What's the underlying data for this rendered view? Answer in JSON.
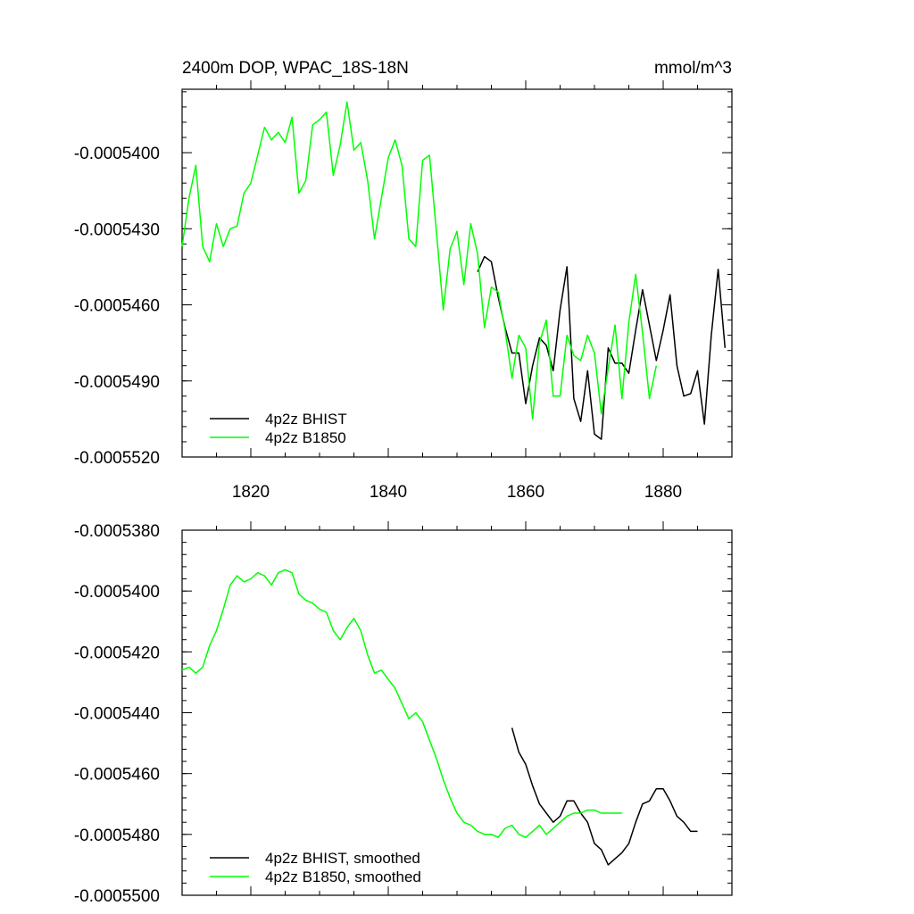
{
  "chart_data": [
    {
      "type": "line",
      "title": "2400m DOP, WPAC_18S-18N",
      "units": "mmol/m^3",
      "xlim": [
        1810,
        1890
      ],
      "ylim": [
        -0.000552,
        -0.0005375
      ],
      "xticks": [
        1820,
        1840,
        1860,
        1880
      ],
      "xtick_labels": [
        "1820",
        "1840",
        "1860",
        "1880"
      ],
      "yticks": [
        -0.000552,
        -0.000549,
        -0.000546,
        -0.000543,
        -0.00054
      ],
      "ytick_labels": [
        "-0.0005520",
        "-0.0005490",
        "-0.0005460",
        "-0.0005430",
        "-0.0005400"
      ],
      "legend": "bottom-left",
      "series": [
        {
          "name": "4p2z BHIST",
          "color": "#000000",
          "x": [
            1853,
            1854,
            1855,
            1856,
            1857,
            1858,
            1859,
            1860,
            1861,
            1862,
            1863,
            1864,
            1865,
            1866,
            1867,
            1868,
            1869,
            1870,
            1871,
            1872,
            1873,
            1874,
            1875,
            1876,
            1877,
            1878,
            1879,
            1880,
            1881,
            1882,
            1883,
            1884,
            1885,
            1886,
            1887,
            1888,
            1889
          ],
          "y": [
            -0.0005447,
            -0.0005441,
            -0.0005443,
            -0.0005457,
            -0.0005469,
            -0.0005479,
            -0.0005479,
            -0.0005499,
            -0.0005484,
            -0.0005473,
            -0.0005476,
            -0.0005486,
            -0.0005462,
            -0.0005445,
            -0.0005497,
            -0.0005506,
            -0.0005486,
            -0.0005511,
            -0.0005513,
            -0.0005477,
            -0.0005483,
            -0.0005483,
            -0.0005487,
            -0.000547,
            -0.0005454,
            -0.0005468,
            -0.0005482,
            -0.000547,
            -0.0005456,
            -0.0005484,
            -0.0005496,
            -0.0005495,
            -0.0005486,
            -0.0005507,
            -0.0005472,
            -0.0005446,
            -0.0005477
          ]
        },
        {
          "name": "4p2z B1850",
          "color": "#00ff00",
          "x": [
            1810,
            1811,
            1812,
            1813,
            1814,
            1815,
            1816,
            1817,
            1818,
            1819,
            1820,
            1821,
            1822,
            1823,
            1824,
            1825,
            1826,
            1827,
            1828,
            1829,
            1830,
            1831,
            1832,
            1833,
            1834,
            1835,
            1836,
            1837,
            1838,
            1839,
            1840,
            1841,
            1842,
            1843,
            1844,
            1845,
            1846,
            1847,
            1848,
            1849,
            1850,
            1851,
            1852,
            1853,
            1854,
            1855,
            1856,
            1857,
            1858,
            1859,
            1860,
            1861,
            1862,
            1863,
            1864,
            1865,
            1866,
            1867,
            1868,
            1869,
            1870,
            1871,
            1872,
            1873,
            1874,
            1875,
            1876,
            1877,
            1878,
            1879
          ],
          "y": [
            -0.0005437,
            -0.0005418,
            -0.0005405,
            -0.0005437,
            -0.0005443,
            -0.0005428,
            -0.0005437,
            -0.000543,
            -0.0005429,
            -0.0005416,
            -0.0005412,
            -0.0005401,
            -0.000539,
            -0.0005395,
            -0.0005392,
            -0.0005396,
            -0.0005386,
            -0.0005416,
            -0.0005411,
            -0.0005389,
            -0.0005387,
            -0.0005384,
            -0.0005409,
            -0.0005397,
            -0.000538,
            -0.0005399,
            -0.0005396,
            -0.0005411,
            -0.0005434,
            -0.0005418,
            -0.0005402,
            -0.0005395,
            -0.0005405,
            -0.0005434,
            -0.0005437,
            -0.0005403,
            -0.0005401,
            -0.0005431,
            -0.0005462,
            -0.0005438,
            -0.0005431,
            -0.0005452,
            -0.0005428,
            -0.000544,
            -0.0005469,
            -0.0005453,
            -0.0005455,
            -0.000547,
            -0.0005489,
            -0.0005472,
            -0.0005477,
            -0.0005505,
            -0.0005475,
            -0.0005466,
            -0.0005496,
            -0.0005496,
            -0.0005472,
            -0.000548,
            -0.0005482,
            -0.0005472,
            -0.0005479,
            -0.0005503,
            -0.0005485,
            -0.0005468,
            -0.0005497,
            -0.0005467,
            -0.0005448,
            -0.0005471,
            -0.0005497,
            -0.0005484
          ]
        }
      ]
    },
    {
      "type": "line",
      "title": "",
      "units": "",
      "xlim": [
        1810,
        1890
      ],
      "ylim": [
        -0.00055,
        -0.000538
      ],
      "xticks": [
        1820,
        1840,
        1860,
        1880
      ],
      "xtick_labels": [],
      "yticks": [
        -0.00055,
        -0.000548,
        -0.000546,
        -0.000544,
        -0.000542,
        -0.00054,
        -0.000538
      ],
      "ytick_labels": [
        "-0.0005500",
        "-0.0005480",
        "-0.0005460",
        "-0.0005440",
        "-0.0005420",
        "-0.0005400",
        "-0.0005380"
      ],
      "legend": "bottom-left",
      "series": [
        {
          "name": "4p2z BHIST, smoothed",
          "color": "#000000",
          "x": [
            1858,
            1859,
            1860,
            1861,
            1862,
            1863,
            1864,
            1865,
            1866,
            1867,
            1868,
            1869,
            1870,
            1871,
            1872,
            1873,
            1874,
            1875,
            1876,
            1877,
            1878,
            1879,
            1880,
            1881,
            1882,
            1883,
            1884,
            1885
          ],
          "y": [
            -0.0005445,
            -0.0005453,
            -0.0005457,
            -0.0005464,
            -0.000547,
            -0.0005473,
            -0.0005476,
            -0.0005474,
            -0.0005469,
            -0.0005469,
            -0.0005473,
            -0.0005476,
            -0.0005483,
            -0.0005485,
            -0.000549,
            -0.0005488,
            -0.0005486,
            -0.0005483,
            -0.0005476,
            -0.000547,
            -0.0005469,
            -0.0005465,
            -0.0005465,
            -0.0005469,
            -0.0005474,
            -0.0005476,
            -0.0005479,
            -0.0005479
          ]
        },
        {
          "name": "4p2z B1850, smoothed",
          "color": "#00ff00",
          "x": [
            1810,
            1811,
            1812,
            1813,
            1814,
            1815,
            1816,
            1817,
            1818,
            1819,
            1820,
            1821,
            1822,
            1823,
            1824,
            1825,
            1826,
            1827,
            1828,
            1829,
            1830,
            1831,
            1832,
            1833,
            1834,
            1835,
            1836,
            1837,
            1838,
            1839,
            1840,
            1841,
            1842,
            1843,
            1844,
            1845,
            1846,
            1847,
            1848,
            1849,
            1850,
            1851,
            1852,
            1853,
            1854,
            1855,
            1856,
            1857,
            1858,
            1859,
            1860,
            1861,
            1862,
            1863,
            1864,
            1865,
            1866,
            1867,
            1868,
            1869,
            1870,
            1871,
            1872,
            1873,
            1874
          ],
          "y": [
            -0.0005426,
            -0.0005425,
            -0.0005427,
            -0.0005425,
            -0.0005418,
            -0.0005413,
            -0.0005406,
            -0.0005398,
            -0.0005395,
            -0.0005397,
            -0.0005396,
            -0.0005394,
            -0.0005395,
            -0.0005398,
            -0.0005394,
            -0.0005393,
            -0.0005394,
            -0.0005401,
            -0.0005403,
            -0.0005404,
            -0.0005406,
            -0.0005407,
            -0.0005413,
            -0.0005416,
            -0.0005412,
            -0.0005409,
            -0.0005413,
            -0.0005421,
            -0.0005427,
            -0.0005426,
            -0.0005429,
            -0.0005432,
            -0.0005437,
            -0.0005442,
            -0.000544,
            -0.0005443,
            -0.0005449,
            -0.0005455,
            -0.0005462,
            -0.0005468,
            -0.0005473,
            -0.0005476,
            -0.0005477,
            -0.0005479,
            -0.000548,
            -0.000548,
            -0.0005481,
            -0.0005478,
            -0.0005477,
            -0.000548,
            -0.0005481,
            -0.0005479,
            -0.0005477,
            -0.000548,
            -0.0005478,
            -0.0005476,
            -0.0005474,
            -0.0005473,
            -0.0005473,
            -0.0005472,
            -0.0005472,
            -0.0005473,
            -0.0005473,
            -0.0005473,
            -0.0005473
          ]
        }
      ]
    }
  ]
}
